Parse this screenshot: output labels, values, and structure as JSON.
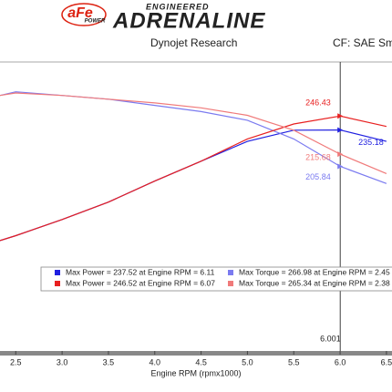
{
  "header": {
    "logo": "aFe",
    "logo_sub": "POWER",
    "brand_top": "ENGINEERED",
    "brand": "ADRENALINE",
    "source": "Dynojet Research",
    "correction": "CF: SAE Sm"
  },
  "chart_data": {
    "type": "line",
    "x_label": "Engine RPM (rpmx1000)",
    "x": [
      2.33,
      2.5,
      3.0,
      3.5,
      4.0,
      4.5,
      5.0,
      5.5,
      6.0,
      6.5
    ],
    "series": [
      {
        "name": "Max Power = 237.52 at Engine RPM = 6.11",
        "color": "#1f1fe0",
        "values": [
          146,
          150,
          163,
          177,
          194,
          210,
          226,
          235,
          235.18,
          226
        ]
      },
      {
        "name": "Max Torque = 266.98 at Engine RPM = 2.45",
        "color": "#7b7bf0",
        "values": [
          263,
          266,
          263,
          260,
          255,
          250,
          243,
          228,
          205.84,
          192
        ]
      },
      {
        "name": "Max Power = 246.52 at Engine RPM = 6.07",
        "color": "#e82020",
        "values": [
          146,
          150,
          163,
          177,
          194,
          210,
          228,
          240,
          246.43,
          238
        ]
      },
      {
        "name": "Max Torque = 265.34 at Engine RPM = 2.38",
        "color": "#f07a7a",
        "values": [
          263,
          265,
          263,
          260,
          257,
          253,
          247,
          235,
          215.68,
          200
        ]
      }
    ],
    "cursor": 6.001,
    "xlim": [
      2.33,
      6.56
    ],
    "ylim": [
      57,
      290
    ],
    "xticks": [
      2.5,
      {
        "value": 3,
        "label": "3.0"
      },
      3.5,
      {
        "value": 4,
        "label": "4.0"
      },
      4.5,
      {
        "value": 5,
        "label": "5.0"
      },
      5.5,
      {
        "value": 6,
        "label": "6.0"
      },
      6.5
    ]
  }
}
